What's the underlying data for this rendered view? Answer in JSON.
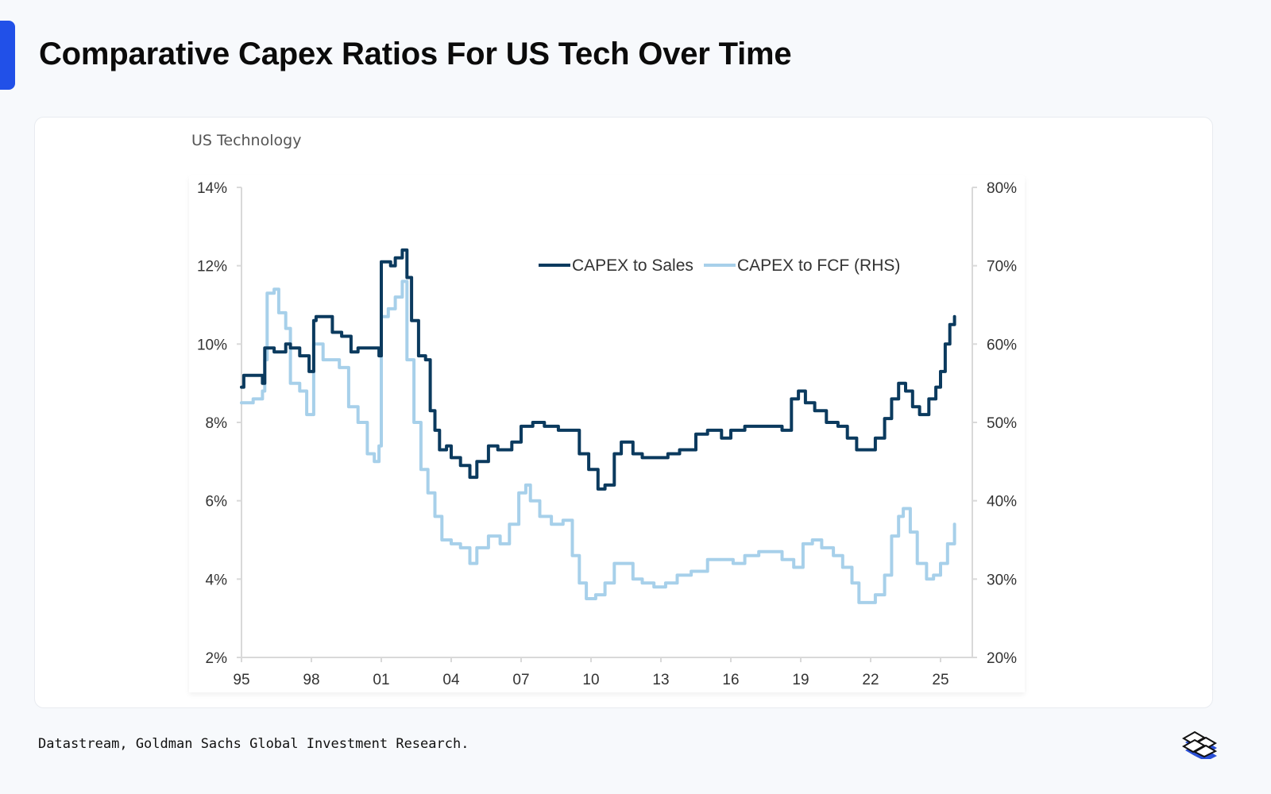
{
  "header": {
    "title": "Comparative Capex Ratios For US Tech Over Time"
  },
  "footer": {
    "source": "Datastream, Goldman Sachs Global Investment Research.",
    "logo_icon": "stacked-tiles-logo-icon"
  },
  "colors": {
    "accent": "#2150e8",
    "capex_to_sales": "#0b3a5e",
    "capex_to_fcf": "#a7d0ea"
  },
  "chart_data": {
    "type": "line",
    "title": "US Technology",
    "xlabel": "",
    "ylabel": "",
    "x_ticks": [
      "95",
      "98",
      "01",
      "04",
      "07",
      "10",
      "13",
      "16",
      "19",
      "22",
      "25"
    ],
    "x_range": [
      1995,
      2025.8
    ],
    "y_left": {
      "ticks": [
        "14%",
        "12%",
        "10%",
        "8%",
        "6%",
        "4%",
        "2%"
      ],
      "range": [
        2,
        14
      ]
    },
    "y_right": {
      "ticks": [
        "80%",
        "70%",
        "60%",
        "50%",
        "40%",
        "30%",
        "20%"
      ],
      "range": [
        20,
        80
      ]
    },
    "grid": false,
    "legend": {
      "position": "top-right",
      "entries": [
        "CAPEX to Sales",
        "CAPEX to FCF (RHS)"
      ]
    },
    "series": [
      {
        "name": "CAPEX to Sales",
        "axis": "left",
        "x": [
          1995.0,
          1995.1,
          1995.8,
          1995.9,
          1996.0,
          1996.3,
          1996.4,
          1996.9,
          1997.1,
          1997.5,
          1997.9,
          1998.1,
          1998.2,
          1998.8,
          1998.9,
          1999.3,
          1999.7,
          2000.0,
          2000.5,
          2000.9,
          2001.0,
          2001.4,
          2001.6,
          2001.9,
          2002.1,
          2002.3,
          2002.6,
          2002.9,
          2003.1,
          2003.3,
          2003.5,
          2003.8,
          2004.0,
          2004.4,
          2004.8,
          2005.1,
          2005.6,
          2006.0,
          2006.6,
          2007.0,
          2007.5,
          2008.0,
          2008.6,
          2009.1,
          2009.5,
          2009.9,
          2010.3,
          2010.6,
          2011.0,
          2011.3,
          2011.8,
          2012.2,
          2012.7,
          2013.3,
          2013.8,
          2014.5,
          2015.0,
          2015.6,
          2016.0,
          2016.6,
          2017.1,
          2017.6,
          2018.2,
          2018.6,
          2018.9,
          2019.2,
          2019.6,
          2020.1,
          2020.6,
          2021.0,
          2021.4,
          2021.8,
          2022.2,
          2022.6,
          2022.9,
          2023.2,
          2023.5,
          2023.8,
          2024.1,
          2024.5,
          2024.8,
          2025.0,
          2025.2,
          2025.4,
          2025.6
        ],
        "values": [
          8.9,
          9.2,
          9.2,
          9.0,
          9.9,
          9.9,
          9.8,
          10.0,
          9.9,
          9.7,
          9.3,
          10.6,
          10.7,
          10.7,
          10.3,
          10.2,
          9.8,
          9.9,
          9.9,
          9.7,
          12.1,
          12.0,
          12.2,
          12.4,
          11.7,
          10.6,
          9.7,
          9.6,
          8.3,
          7.8,
          7.3,
          7.4,
          7.1,
          6.9,
          6.6,
          7.0,
          7.4,
          7.3,
          7.5,
          7.9,
          8.0,
          7.9,
          7.8,
          7.8,
          7.2,
          6.8,
          6.3,
          6.4,
          7.2,
          7.5,
          7.2,
          7.1,
          7.1,
          7.2,
          7.3,
          7.7,
          7.8,
          7.6,
          7.8,
          7.9,
          7.9,
          7.9,
          7.8,
          8.6,
          8.8,
          8.5,
          8.3,
          8.0,
          7.9,
          7.6,
          7.3,
          7.3,
          7.6,
          8.1,
          8.6,
          9.0,
          8.8,
          8.4,
          8.2,
          8.6,
          8.9,
          9.3,
          10.0,
          10.5,
          10.7
        ]
      },
      {
        "name": "CAPEX to FCF (RHS)",
        "axis": "right",
        "x": [
          1995.0,
          1995.5,
          1995.9,
          1996.0,
          1996.1,
          1996.4,
          1996.6,
          1996.9,
          1997.1,
          1997.5,
          1997.8,
          1998.0,
          1998.1,
          1998.5,
          1998.8,
          1999.2,
          1999.6,
          2000.0,
          2000.4,
          2000.7,
          2000.9,
          2001.0,
          2001.3,
          2001.6,
          2001.9,
          2002.1,
          2002.4,
          2002.7,
          2003.0,
          2003.3,
          2003.6,
          2004.0,
          2004.4,
          2004.8,
          2005.1,
          2005.6,
          2006.1,
          2006.5,
          2006.9,
          2007.2,
          2007.4,
          2007.8,
          2008.3,
          2008.8,
          2009.2,
          2009.5,
          2009.8,
          2010.2,
          2010.6,
          2011.0,
          2011.4,
          2011.8,
          2012.2,
          2012.7,
          2013.2,
          2013.7,
          2014.3,
          2015.0,
          2015.6,
          2016.1,
          2016.6,
          2017.2,
          2017.8,
          2018.2,
          2018.7,
          2019.1,
          2019.5,
          2019.9,
          2020.4,
          2020.8,
          2021.2,
          2021.5,
          2021.9,
          2022.2,
          2022.6,
          2022.9,
          2023.2,
          2023.4,
          2023.7,
          2024.0,
          2024.4,
          2024.7,
          2025.0,
          2025.3,
          2025.6
        ],
        "values": [
          52.5,
          53,
          54,
          58,
          66.5,
          67,
          64,
          62,
          55,
          54,
          51,
          51,
          60,
          58,
          58,
          57,
          52,
          50,
          46,
          45,
          47,
          63.5,
          64.5,
          66,
          68,
          58,
          50,
          44,
          41,
          38,
          35,
          34.5,
          34,
          32,
          34,
          35.5,
          34.5,
          37,
          41,
          42,
          40,
          38,
          37,
          37.5,
          33,
          29.5,
          27.5,
          28,
          29.5,
          32,
          32,
          30,
          29.5,
          29,
          29.5,
          30.5,
          31,
          32.5,
          32.5,
          32,
          33,
          33.5,
          33.5,
          32.5,
          31.5,
          34.5,
          35,
          34,
          33,
          31.5,
          29.5,
          27,
          27,
          28,
          30.5,
          35.5,
          38,
          39,
          36,
          32,
          30,
          30.5,
          32,
          34.5,
          37
        ]
      }
    ]
  }
}
